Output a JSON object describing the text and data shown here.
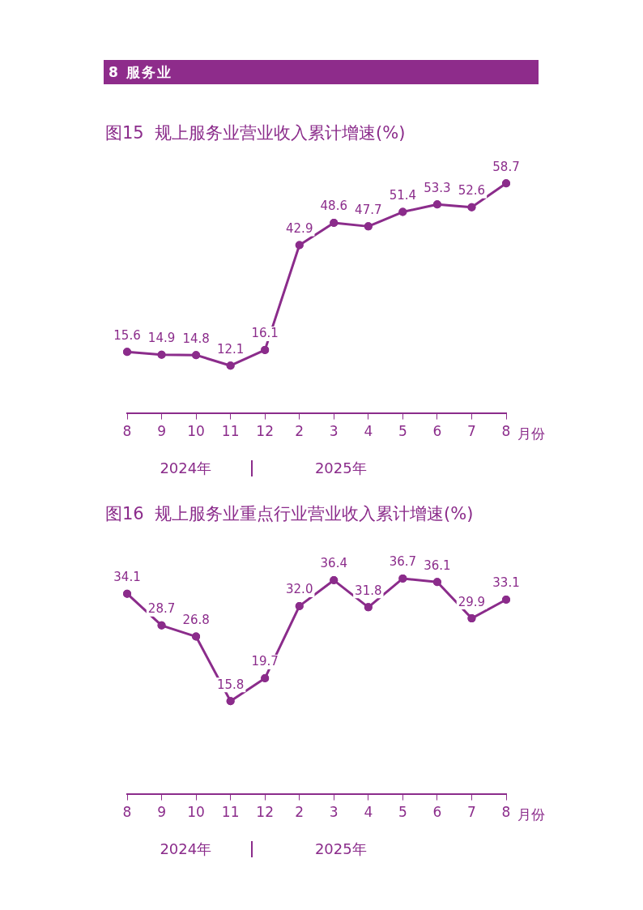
{
  "chart_data": [
    {
      "type": "other",
      "title": "8 服务业"
    },
    {
      "type": "line",
      "title": "图15  规上服务业营业收入累计增速(%)",
      "xlabel": "月份",
      "categories": [
        "8",
        "9",
        "10",
        "11",
        "12",
        "2",
        "3",
        "4",
        "5",
        "6",
        "7",
        "8"
      ],
      "series": [
        {
          "color": "#8b2c8b",
          "values": [
            15.6,
            14.9,
            14.8,
            12.1,
            16.1,
            42.9,
            48.6,
            47.7,
            51.4,
            53.3,
            52.6,
            58.7
          ]
        }
      ],
      "data_labels": true,
      "marker": "circle",
      "line_style": "solid",
      "grid": false,
      "legend": false,
      "annotations": [
        "2024年",
        "2025年"
      ]
    },
    {
      "type": "line",
      "title": "图16  规上服务业重点行业营业收入累计增速(%)",
      "xlabel": "月份",
      "categories": [
        "8",
        "9",
        "10",
        "11",
        "12",
        "2",
        "3",
        "4",
        "5",
        "6",
        "7",
        "8"
      ],
      "series": [
        {
          "color": "#8b2c8b",
          "values": [
            34.1,
            28.7,
            26.8,
            15.8,
            19.7,
            32.0,
            36.4,
            31.8,
            36.7,
            36.1,
            29.9,
            33.1
          ],
          "value_labels": [
            "34.1",
            "28.7",
            "26.8",
            "15.8",
            "19.7",
            "32.0",
            "36.4",
            "31.8",
            "36.7",
            "36.1",
            "29.9",
            "33.1"
          ]
        }
      ],
      "marker": "circle",
      "line_style": "solid",
      "grid": false,
      "legend": false,
      "annotations": [
        "2024年",
        "2025年"
      ]
    }
  ]
}
